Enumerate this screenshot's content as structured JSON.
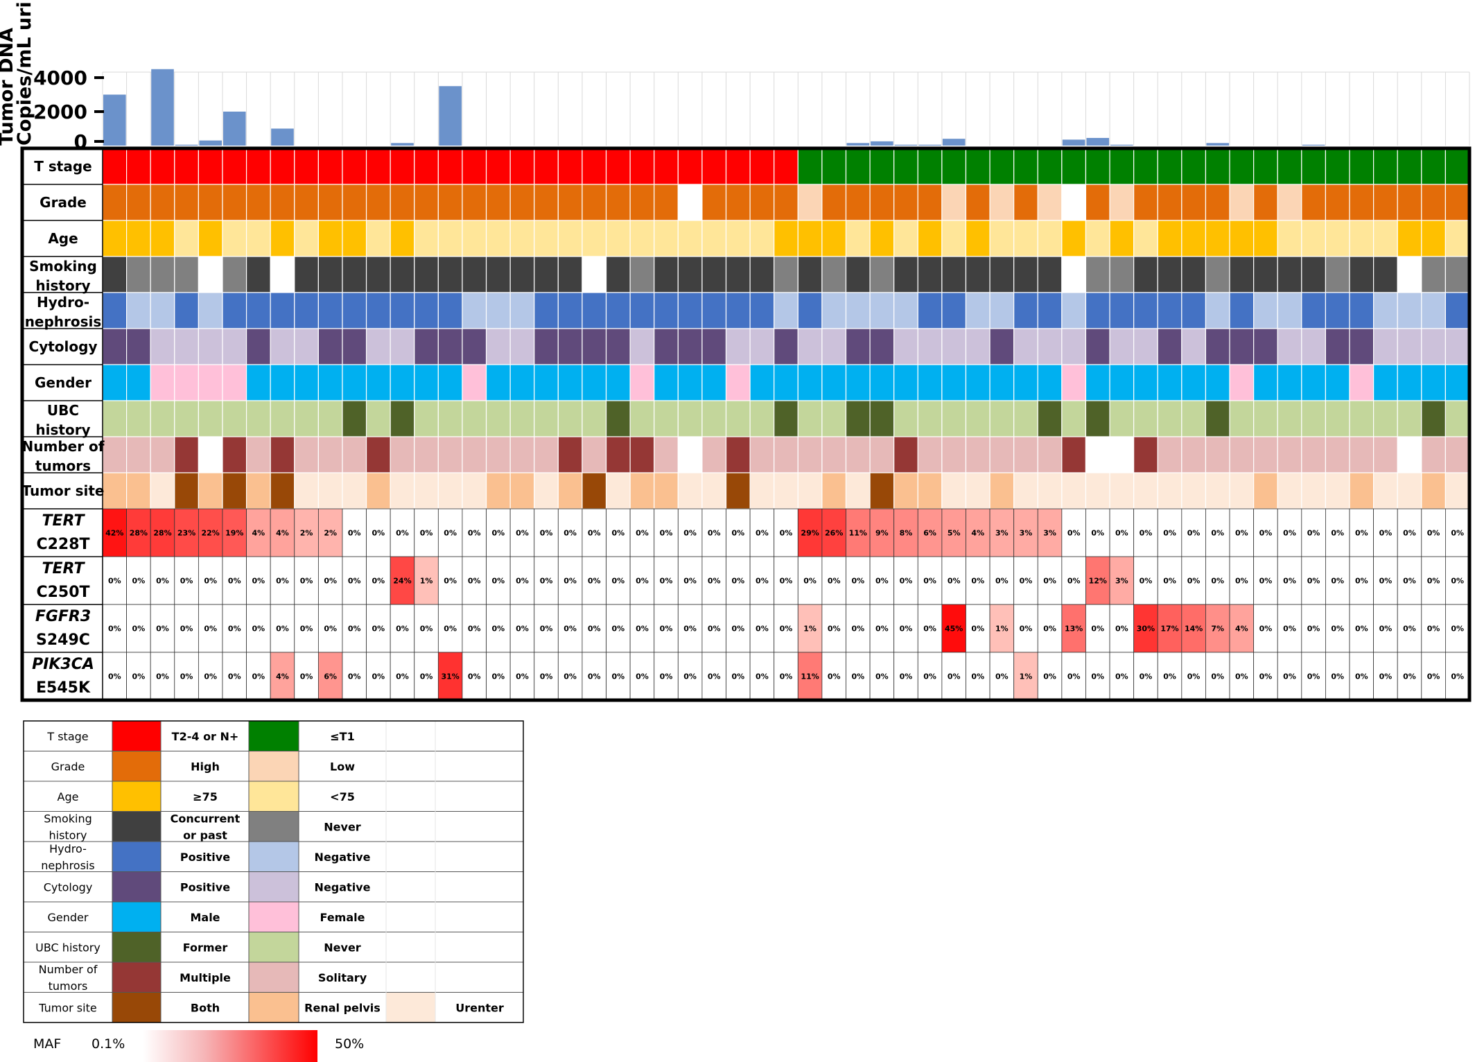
{
  "chart_data": {
    "type": "heatmap",
    "n_patients": 57,
    "bar_chart": {
      "type": "bar",
      "ylabel_lines": [
        "Tumor DNA",
        "Copies/mL urine"
      ],
      "yticks": [
        "4000",
        "2000",
        "0"
      ],
      "ytick_values": [
        4000,
        2000,
        0
      ],
      "ylim": [
        0,
        4500
      ],
      "bar_color": "#6b92cb",
      "values": [
        3000,
        0,
        4500,
        50,
        300,
        2000,
        0,
        1000,
        0,
        0,
        0,
        0,
        150,
        0,
        3500,
        0,
        0,
        0,
        0,
        0,
        0,
        0,
        0,
        0,
        0,
        0,
        0,
        0,
        0,
        0,
        0,
        150,
        250,
        50,
        50,
        400,
        0,
        0,
        0,
        0,
        350,
        450,
        50,
        0,
        0,
        0,
        150,
        0,
        0,
        0,
        50,
        0,
        0,
        0,
        0,
        0,
        0
      ]
    },
    "clinical_rows": [
      {
        "label_lines": [
          "T stage"
        ],
        "key": "t",
        "values": [
          "a",
          "a",
          "a",
          "a",
          "a",
          "a",
          "a",
          "a",
          "a",
          "a",
          "a",
          "a",
          "a",
          "a",
          "a",
          "a",
          "a",
          "a",
          "a",
          "a",
          "a",
          "a",
          "a",
          "a",
          "a",
          "a",
          "a",
          "a",
          "a",
          "b",
          "b",
          "b",
          "b",
          "b",
          "b",
          "b",
          "b",
          "b",
          "b",
          "b",
          "b",
          "b",
          "b",
          "b",
          "b",
          "b",
          "b",
          "b",
          "b",
          "b",
          "b",
          "b",
          "b",
          "b",
          "b",
          "b",
          "b"
        ]
      },
      {
        "label_lines": [
          "Grade"
        ],
        "key": "grade",
        "values": [
          "a",
          "a",
          "a",
          "a",
          "a",
          "a",
          "a",
          "a",
          "a",
          "a",
          "a",
          "a",
          "a",
          "a",
          "a",
          "a",
          "a",
          "a",
          "a",
          "a",
          "a",
          "a",
          "a",
          "a",
          "w",
          "a",
          "a",
          "a",
          "a",
          "b",
          "a",
          "a",
          "a",
          "a",
          "a",
          "b",
          "a",
          "b",
          "a",
          "b",
          "w",
          "a",
          "b",
          "a",
          "a",
          "a",
          "a",
          "b",
          "a",
          "b",
          "a",
          "a",
          "a",
          "a",
          "a",
          "a",
          "a"
        ]
      },
      {
        "label_lines": [
          "Age"
        ],
        "key": "age",
        "values": [
          "a",
          "a",
          "a",
          "b",
          "a",
          "b",
          "b",
          "a",
          "b",
          "a",
          "a",
          "b",
          "a",
          "b",
          "b",
          "b",
          "b",
          "b",
          "b",
          "b",
          "b",
          "b",
          "b",
          "b",
          "b",
          "b",
          "b",
          "b",
          "a",
          "a",
          "a",
          "b",
          "a",
          "b",
          "a",
          "b",
          "a",
          "b",
          "b",
          "b",
          "a",
          "b",
          "a",
          "b",
          "a",
          "a",
          "a",
          "a",
          "a",
          "b",
          "b",
          "b",
          "b",
          "b",
          "a",
          "a",
          "b"
        ]
      },
      {
        "label_lines": [
          "Smoking",
          "history"
        ],
        "key": "smoke",
        "values": [
          "a",
          "b",
          "b",
          "b",
          "w",
          "b",
          "a",
          "w",
          "a",
          "a",
          "a",
          "a",
          "a",
          "a",
          "a",
          "a",
          "a",
          "a",
          "a",
          "a",
          "w",
          "a",
          "b",
          "a",
          "a",
          "a",
          "a",
          "a",
          "b",
          "a",
          "b",
          "a",
          "b",
          "a",
          "a",
          "a",
          "a",
          "a",
          "a",
          "a",
          "w",
          "b",
          "b",
          "a",
          "a",
          "a",
          "b",
          "a",
          "a",
          "a",
          "a",
          "b",
          "a",
          "a",
          "w",
          "b",
          "b"
        ]
      },
      {
        "label_lines": [
          "Hydro-",
          "nephrosis"
        ],
        "key": "hydro",
        "values": [
          "a",
          "b",
          "b",
          "a",
          "b",
          "a",
          "a",
          "a",
          "a",
          "a",
          "a",
          "a",
          "a",
          "a",
          "a",
          "b",
          "b",
          "b",
          "a",
          "a",
          "a",
          "a",
          "a",
          "a",
          "a",
          "a",
          "a",
          "a",
          "b",
          "a",
          "b",
          "b",
          "b",
          "b",
          "a",
          "a",
          "b",
          "b",
          "a",
          "a",
          "b",
          "a",
          "a",
          "a",
          "a",
          "a",
          "b",
          "a",
          "b",
          "b",
          "a",
          "a",
          "a",
          "b",
          "b",
          "b",
          "a"
        ]
      },
      {
        "label_lines": [
          "Cytology"
        ],
        "key": "cyto",
        "values": [
          "a",
          "a",
          "b",
          "b",
          "b",
          "b",
          "a",
          "b",
          "b",
          "a",
          "a",
          "b",
          "b",
          "a",
          "a",
          "a",
          "b",
          "b",
          "a",
          "a",
          "a",
          "a",
          "b",
          "a",
          "a",
          "a",
          "b",
          "b",
          "a",
          "b",
          "b",
          "a",
          "a",
          "b",
          "b",
          "b",
          "b",
          "a",
          "b",
          "b",
          "b",
          "a",
          "b",
          "b",
          "a",
          "b",
          "a",
          "a",
          "a",
          "b",
          "b",
          "a",
          "a",
          "b",
          "b",
          "b",
          "b"
        ]
      },
      {
        "label_lines": [
          "Gender"
        ],
        "key": "gender",
        "values": [
          "a",
          "a",
          "b",
          "b",
          "b",
          "b",
          "a",
          "a",
          "a",
          "a",
          "a",
          "a",
          "a",
          "a",
          "a",
          "b",
          "a",
          "a",
          "a",
          "a",
          "a",
          "a",
          "b",
          "a",
          "a",
          "a",
          "b",
          "a",
          "a",
          "a",
          "a",
          "a",
          "a",
          "a",
          "a",
          "a",
          "a",
          "a",
          "a",
          "a",
          "b",
          "a",
          "a",
          "a",
          "a",
          "a",
          "a",
          "b",
          "a",
          "a",
          "a",
          "a",
          "b",
          "a",
          "a",
          "a",
          "a"
        ]
      },
      {
        "label_lines": [
          "UBC",
          "history"
        ],
        "key": "ubc",
        "values": [
          "b",
          "b",
          "b",
          "b",
          "b",
          "b",
          "b",
          "b",
          "b",
          "b",
          "a",
          "b",
          "a",
          "b",
          "b",
          "b",
          "b",
          "b",
          "b",
          "b",
          "b",
          "a",
          "b",
          "b",
          "b",
          "b",
          "b",
          "b",
          "a",
          "b",
          "b",
          "a",
          "a",
          "b",
          "b",
          "b",
          "b",
          "b",
          "b",
          "a",
          "b",
          "a",
          "b",
          "b",
          "b",
          "b",
          "a",
          "b",
          "b",
          "b",
          "b",
          "b",
          "b",
          "b",
          "b",
          "a",
          "b"
        ]
      },
      {
        "label_lines": [
          "Number of",
          "tumors"
        ],
        "key": "num",
        "values": [
          "b",
          "b",
          "b",
          "a",
          "w",
          "a",
          "b",
          "a",
          "b",
          "b",
          "b",
          "a",
          "b",
          "b",
          "b",
          "b",
          "b",
          "b",
          "b",
          "a",
          "b",
          "a",
          "a",
          "b",
          "w",
          "b",
          "a",
          "b",
          "b",
          "b",
          "b",
          "b",
          "b",
          "a",
          "b",
          "b",
          "b",
          "b",
          "b",
          "b",
          "a",
          "w",
          "w",
          "a",
          "b",
          "b",
          "b",
          "b",
          "b",
          "b",
          "b",
          "b",
          "b",
          "b",
          "w",
          "b",
          "b"
        ]
      },
      {
        "label_lines": [
          "Tumor site"
        ],
        "key": "site",
        "values": [
          "b",
          "b",
          "c",
          "a",
          "b",
          "a",
          "b",
          "a",
          "c",
          "c",
          "c",
          "b",
          "c",
          "c",
          "c",
          "c",
          "b",
          "b",
          "c",
          "b",
          "a",
          "c",
          "b",
          "b",
          "c",
          "c",
          "a",
          "c",
          "c",
          "c",
          "b",
          "c",
          "a",
          "b",
          "b",
          "c",
          "c",
          "b",
          "c",
          "c",
          "c",
          "c",
          "c",
          "c",
          "c",
          "c",
          "c",
          "c",
          "b",
          "c",
          "c",
          "c",
          "b",
          "c",
          "c",
          "b",
          "c"
        ]
      }
    ],
    "mutation_rows": [
      {
        "gene": "TERT",
        "variant": "C228T",
        "gene_italic": true,
        "values": [
          "42%",
          "28%",
          "28%",
          "23%",
          "22%",
          "19%",
          "4%",
          "4%",
          "2%",
          "2%",
          "0%",
          "0%",
          "0%",
          "0%",
          "0%",
          "0%",
          "0%",
          "0%",
          "0%",
          "0%",
          "0%",
          "0%",
          "0%",
          "0%",
          "0%",
          "0%",
          "0%",
          "0%",
          "0%",
          "29%",
          "26%",
          "11%",
          "9%",
          "8%",
          "6%",
          "5%",
          "4%",
          "3%",
          "3%",
          "3%",
          "0%",
          "0%",
          "0%",
          "0%",
          "0%",
          "0%",
          "0%",
          "0%",
          "0%",
          "0%",
          "0%",
          "0%",
          "0%",
          "0%",
          "0%",
          "0%",
          "0%"
        ]
      },
      {
        "gene": "TERT",
        "variant": "C250T",
        "gene_italic": true,
        "values": [
          "0%",
          "0%",
          "0%",
          "0%",
          "0%",
          "0%",
          "0%",
          "0%",
          "0%",
          "0%",
          "0%",
          "0%",
          "24%",
          "1%",
          "0%",
          "0%",
          "0%",
          "0%",
          "0%",
          "0%",
          "0%",
          "0%",
          "0%",
          "0%",
          "0%",
          "0%",
          "0%",
          "0%",
          "0%",
          "0%",
          "0%",
          "0%",
          "0%",
          "0%",
          "0%",
          "0%",
          "0%",
          "0%",
          "0%",
          "0%",
          "0%",
          "12%",
          "3%",
          "0%",
          "0%",
          "0%",
          "0%",
          "0%",
          "0%",
          "0%",
          "0%",
          "0%",
          "0%",
          "0%",
          "0%",
          "0%",
          "0%"
        ]
      },
      {
        "gene": "FGFR3",
        "variant": "S249C",
        "gene_italic": true,
        "values": [
          "0%",
          "0%",
          "0%",
          "0%",
          "0%",
          "0%",
          "0%",
          "0%",
          "0%",
          "0%",
          "0%",
          "0%",
          "0%",
          "0%",
          "0%",
          "0%",
          "0%",
          "0%",
          "0%",
          "0%",
          "0%",
          "0%",
          "0%",
          "0%",
          "0%",
          "0%",
          "0%",
          "0%",
          "0%",
          "1%",
          "0%",
          "0%",
          "0%",
          "0%",
          "0%",
          "45%",
          "0%",
          "1%",
          "0%",
          "0%",
          "13%",
          "0%",
          "0%",
          "30%",
          "17%",
          "14%",
          "7%",
          "4%",
          "0%",
          "0%",
          "0%",
          "0%",
          "0%",
          "0%",
          "0%",
          "0%",
          "0%"
        ]
      },
      {
        "gene": "PIK3CA",
        "variant": "E545K",
        "gene_italic": true,
        "values": [
          "0%",
          "0%",
          "0%",
          "0%",
          "0%",
          "0%",
          "0%",
          "4%",
          "0%",
          "6%",
          "0%",
          "0%",
          "0%",
          "0%",
          "31%",
          "0%",
          "0%",
          "0%",
          "0%",
          "0%",
          "0%",
          "0%",
          "0%",
          "0%",
          "0%",
          "0%",
          "0%",
          "0%",
          "0%",
          "11%",
          "0%",
          "0%",
          "0%",
          "0%",
          "0%",
          "0%",
          "0%",
          "0%",
          "1%",
          "0%",
          "0%",
          "0%",
          "0%",
          "0%",
          "0%",
          "0%",
          "0%",
          "0%",
          "0%",
          "0%",
          "0%",
          "0%",
          "0%",
          "0%",
          "0%",
          "0%",
          "0%"
        ]
      }
    ],
    "palette": {
      "t": {
        "a": "#ff0000",
        "b": "#008000"
      },
      "grade": {
        "a": "#e36c09",
        "b": "#fbd5b5",
        "w": "#ffffff"
      },
      "age": {
        "a": "#ffc000",
        "b": "#ffe699"
      },
      "smoke": {
        "a": "#404040",
        "b": "#808080",
        "w": "#ffffff"
      },
      "hydro": {
        "a": "#4472c4",
        "b": "#b4c7e7"
      },
      "cyto": {
        "a": "#604a7b",
        "b": "#ccc1da"
      },
      "gender": {
        "a": "#00b0f0",
        "b": "#ffc0d9"
      },
      "ubc": {
        "a": "#4f6228",
        "b": "#c3d69b"
      },
      "num": {
        "a": "#953735",
        "b": "#e6b9b8",
        "w": "#ffffff"
      },
      "site": {
        "a": "#984807",
        "b": "#fac090",
        "c": "#fde9d9"
      }
    },
    "legend": [
      {
        "label_lines": [
          "T stage"
        ],
        "c1": "#ff0000",
        "t1_lines": [
          "T2-4 or N+"
        ],
        "c2": "#008000",
        "t2_lines": [
          "≤T1"
        ]
      },
      {
        "label_lines": [
          "Grade"
        ],
        "c1": "#e36c09",
        "t1_lines": [
          "High"
        ],
        "c2": "#fbd5b5",
        "t2_lines": [
          "Low"
        ]
      },
      {
        "label_lines": [
          "Age"
        ],
        "c1": "#ffc000",
        "t1_lines": [
          "≥75"
        ],
        "c2": "#ffe699",
        "t2_lines": [
          "<75"
        ]
      },
      {
        "label_lines": [
          "Smoking",
          "history"
        ],
        "c1": "#404040",
        "t1_lines": [
          "Concurrent",
          "or past"
        ],
        "c2": "#808080",
        "t2_lines": [
          "Never"
        ]
      },
      {
        "label_lines": [
          "Hydro-",
          "nephrosis"
        ],
        "c1": "#4472c4",
        "t1_lines": [
          "Positive"
        ],
        "c2": "#b4c7e7",
        "t2_lines": [
          "Negative"
        ]
      },
      {
        "label_lines": [
          "Cytology"
        ],
        "c1": "#604a7b",
        "t1_lines": [
          "Positive"
        ],
        "c2": "#ccc1da",
        "t2_lines": [
          "Negative"
        ]
      },
      {
        "label_lines": [
          "Gender"
        ],
        "c1": "#00b0f0",
        "t1_lines": [
          "Male"
        ],
        "c2": "#ffc0d9",
        "t2_lines": [
          "Female"
        ]
      },
      {
        "label_lines": [
          "UBC history"
        ],
        "c1": "#4f6228",
        "t1_lines": [
          "Former"
        ],
        "c2": "#c3d69b",
        "t2_lines": [
          "Never"
        ]
      },
      {
        "label_lines": [
          "Number of",
          "tumors"
        ],
        "c1": "#953735",
        "t1_lines": [
          "Multiple"
        ],
        "c2": "#e6b9b8",
        "t2_lines": [
          "Solitary"
        ]
      },
      {
        "label_lines": [
          "Tumor site"
        ],
        "c1": "#984807",
        "t1_lines": [
          "Both"
        ],
        "c2": "#fac090",
        "t2_lines": [
          "Renal pelvis"
        ],
        "c3": "#fde9d9",
        "t3_lines": [
          "Urenter"
        ]
      }
    ],
    "maf_scale": {
      "label": "MAF",
      "min_label": "0.1%",
      "max_label": "50%",
      "min": 0.1,
      "max": 50,
      "color_low": "#ffffff",
      "color_high": "#ff0000"
    }
  }
}
